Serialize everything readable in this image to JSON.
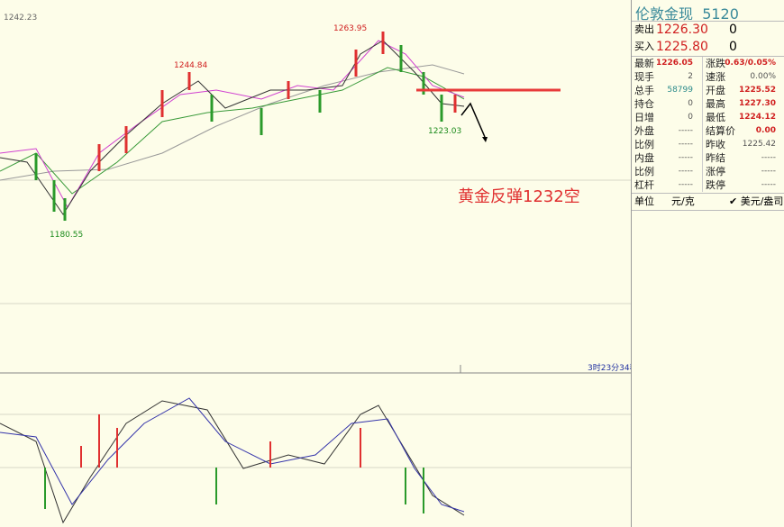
{
  "chart": {
    "top_label": "1242.23",
    "high_label": "1263.95",
    "peak_label": "1244.84",
    "low_label": "1180.55",
    "recent_low_label": "1223.03",
    "annotation": "黄金反弹1232空",
    "timer": "3时23分34秒"
  },
  "quote": {
    "title": "伦敦金现",
    "code": "5120",
    "sell": {
      "label": "卖出",
      "price": "1226.30",
      "volume": "0"
    },
    "buy": {
      "label": "买入",
      "price": "1225.80",
      "volume": "0"
    },
    "rows": [
      [
        "最新",
        "1226.05",
        "涨跌",
        "0.63/0.05%"
      ],
      [
        "现手",
        "2",
        "速涨",
        "0.00%"
      ],
      [
        "总手",
        "58799",
        "开盘",
        "1225.52"
      ],
      [
        "持仓",
        "0",
        "最高",
        "1227.30"
      ],
      [
        "日增",
        "0",
        "最低",
        "1224.12"
      ],
      [
        "外盘",
        "-----",
        "结算价",
        "0.00"
      ],
      [
        "比例",
        "-----",
        "昨收",
        "1225.42"
      ],
      [
        "内盘",
        "-----",
        "昨结",
        "-----"
      ],
      [
        "比例",
        "-----",
        "涨停",
        "-----"
      ],
      [
        "杠杆",
        "-----",
        "跌停",
        "-----"
      ]
    ],
    "unit": [
      "单位",
      "元/克",
      "美元/盎司"
    ]
  }
}
